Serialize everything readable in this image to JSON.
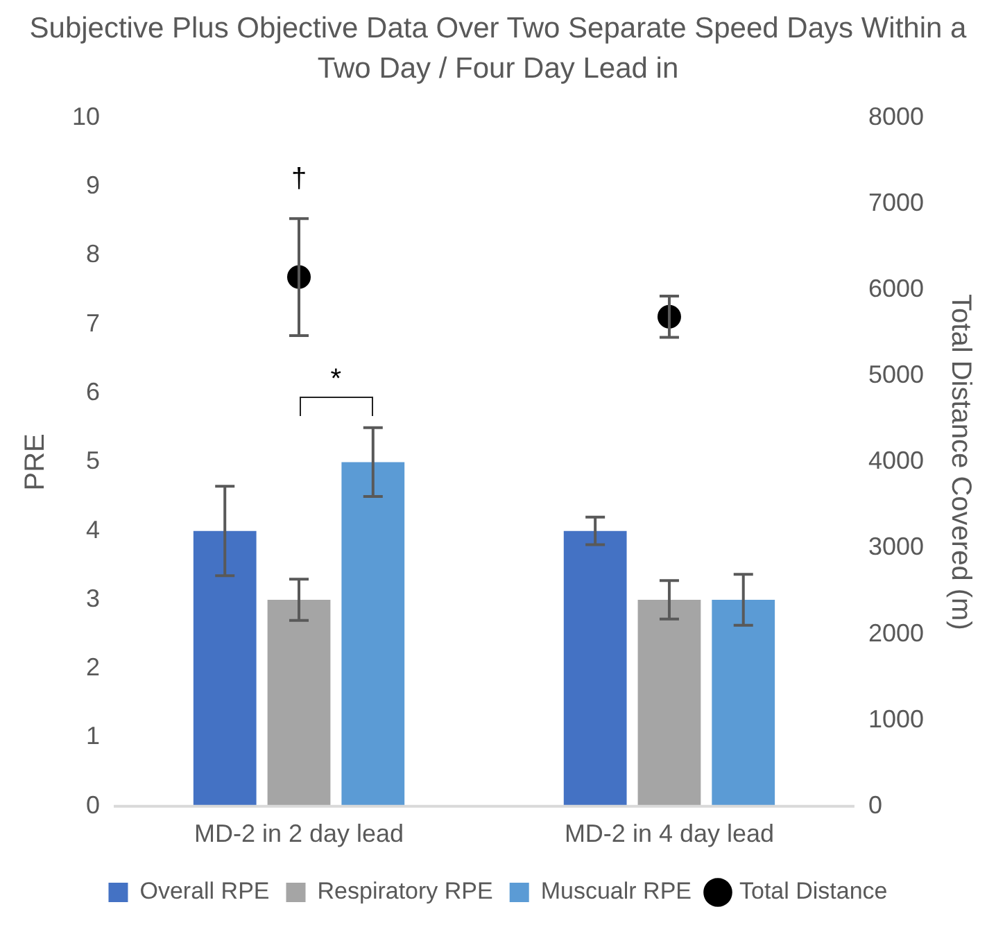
{
  "chart_data": {
    "type": "bar",
    "title": "Subjective Plus Objective Data Over Two Separate Speed Days Within a Two Day / Four Day Lead in",
    "categories": [
      "MD-2 in 2 day lead",
      "MD-2 in 4 day lead"
    ],
    "ylabel": "PRE",
    "y2label": "Total Distance Covered (m)",
    "ylim": [
      0,
      10
    ],
    "yticks": [
      0,
      1,
      2,
      3,
      4,
      5,
      6,
      7,
      8,
      9,
      10
    ],
    "y2lim": [
      0,
      8000
    ],
    "y2ticks": [
      0,
      1000,
      2000,
      3000,
      4000,
      5000,
      6000,
      7000,
      8000
    ],
    "grid": false,
    "legend": "bottom",
    "series": [
      {
        "name": "Overall RPE",
        "color": "#4472c4",
        "values": [
          4,
          4
        ],
        "errors": [
          0.65,
          0.2
        ]
      },
      {
        "name": "Respiratory RPE",
        "color": "#a5a5a5",
        "values": [
          3,
          3
        ],
        "errors": [
          0.3,
          0.28
        ]
      },
      {
        "name": "Muscualr RPE",
        "color": "#5b9bd5",
        "values": [
          5,
          3
        ],
        "errors": [
          0.5,
          0.37
        ]
      },
      {
        "name": "Total Distance",
        "type": "scatter",
        "axis": "y2",
        "marker": "circle",
        "color": "#000000",
        "x": [
          "MD-2 in 2 day lead",
          "MD-2 in 4 day lead"
        ],
        "values": [
          6150,
          5690
        ],
        "errors": [
          680,
          240
        ]
      }
    ],
    "annotations": [
      "†",
      "*"
    ]
  }
}
